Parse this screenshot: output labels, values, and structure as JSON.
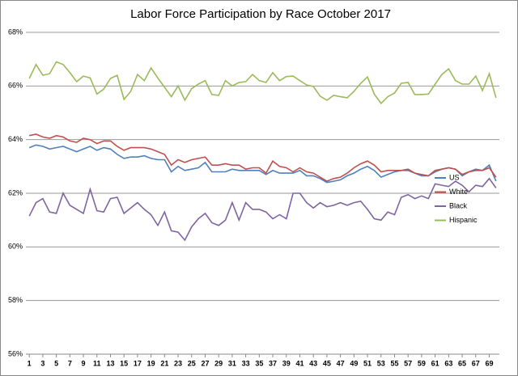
{
  "chart_data": {
    "type": "line",
    "title": "Labor Force Participation by Race October 2017",
    "x": [
      1,
      2,
      3,
      4,
      5,
      6,
      7,
      8,
      9,
      10,
      11,
      12,
      13,
      14,
      15,
      16,
      17,
      18,
      19,
      20,
      21,
      22,
      23,
      24,
      25,
      26,
      27,
      28,
      29,
      30,
      31,
      32,
      33,
      34,
      35,
      36,
      37,
      38,
      39,
      40,
      41,
      42,
      43,
      44,
      45,
      46,
      47,
      48,
      49,
      50,
      51,
      52,
      53,
      54,
      55,
      56,
      57,
      58,
      59,
      60,
      61,
      62,
      63,
      64,
      65,
      66,
      67,
      68,
      69,
      70
    ],
    "xlim": [
      0.5,
      70.5
    ],
    "xticks": [
      1,
      3,
      5,
      7,
      9,
      11,
      13,
      15,
      17,
      19,
      21,
      23,
      25,
      27,
      29,
      31,
      33,
      35,
      37,
      39,
      41,
      43,
      45,
      47,
      49,
      51,
      53,
      55,
      57,
      59,
      61,
      63,
      65,
      67,
      69
    ],
    "ylim": [
      56,
      68
    ],
    "yticks": [
      {
        "value": 56,
        "label": "56%"
      },
      {
        "value": 58,
        "label": "58%"
      },
      {
        "value": 60,
        "label": "60%"
      },
      {
        "value": 62,
        "label": "62%"
      },
      {
        "value": 64,
        "label": "64%"
      },
      {
        "value": 66,
        "label": "66%"
      },
      {
        "value": 68,
        "label": "68%"
      }
    ],
    "grid": true,
    "legend": "right",
    "series": [
      {
        "name": "US",
        "color": "#4f81bd",
        "values": [
          63.7,
          63.8,
          63.75,
          63.65,
          63.7,
          63.75,
          63.65,
          63.55,
          63.65,
          63.75,
          63.6,
          63.7,
          63.65,
          63.45,
          63.3,
          63.35,
          63.35,
          63.4,
          63.3,
          63.25,
          63.25,
          62.8,
          63.0,
          62.85,
          62.9,
          62.95,
          63.15,
          62.8,
          62.8,
          62.8,
          62.9,
          62.85,
          62.85,
          62.85,
          62.85,
          62.7,
          62.85,
          62.75,
          62.75,
          62.75,
          62.85,
          62.65,
          62.65,
          62.55,
          62.4,
          62.45,
          62.5,
          62.65,
          62.75,
          62.9,
          63.0,
          62.85,
          62.6,
          62.7,
          62.8,
          62.85,
          62.85,
          62.75,
          62.65,
          62.65,
          62.8,
          62.9,
          62.95,
          62.9,
          62.65,
          62.8,
          62.9,
          62.85,
          63.05,
          62.45
        ]
      },
      {
        "name": "White",
        "color": "#c0504d",
        "values": [
          64.15,
          64.2,
          64.1,
          64.05,
          64.15,
          64.1,
          63.95,
          63.9,
          64.05,
          64.0,
          63.85,
          63.95,
          63.95,
          63.75,
          63.6,
          63.7,
          63.7,
          63.7,
          63.65,
          63.55,
          63.45,
          63.05,
          63.25,
          63.15,
          63.25,
          63.3,
          63.35,
          63.05,
          63.05,
          63.1,
          63.05,
          63.05,
          62.9,
          62.95,
          62.95,
          62.75,
          63.2,
          63.0,
          62.95,
          62.8,
          62.95,
          62.8,
          62.75,
          62.6,
          62.45,
          62.55,
          62.6,
          62.75,
          62.95,
          63.1,
          63.2,
          63.05,
          62.8,
          62.85,
          62.85,
          62.85,
          62.9,
          62.75,
          62.7,
          62.65,
          62.85,
          62.9,
          62.95,
          62.9,
          62.7,
          62.8,
          62.85,
          62.85,
          62.95,
          62.6
        ]
      },
      {
        "name": "Black",
        "color": "#8064a2",
        "values": [
          61.15,
          61.65,
          61.8,
          61.3,
          61.25,
          62.0,
          61.55,
          61.4,
          61.25,
          62.15,
          61.35,
          61.3,
          61.8,
          61.85,
          61.25,
          61.45,
          61.65,
          61.4,
          61.2,
          60.8,
          61.3,
          60.6,
          60.55,
          60.25,
          60.75,
          61.05,
          61.25,
          60.9,
          60.8,
          61.0,
          61.65,
          61.0,
          61.65,
          61.4,
          61.4,
          61.3,
          61.05,
          61.2,
          61.05,
          62.0,
          62.0,
          61.65,
          61.45,
          61.65,
          61.5,
          61.55,
          61.65,
          61.55,
          61.65,
          61.7,
          61.4,
          61.05,
          61.0,
          61.3,
          61.2,
          61.85,
          61.95,
          61.8,
          61.9,
          61.8,
          62.35,
          62.3,
          62.25,
          62.45,
          62.3,
          62.05,
          62.3,
          62.25,
          62.55,
          62.2
        ]
      },
      {
        "name": "Hispanic",
        "color": "#9bbb59",
        "values": [
          66.28,
          66.8,
          66.4,
          66.46,
          66.9,
          66.8,
          66.5,
          66.16,
          66.37,
          66.3,
          65.7,
          65.88,
          66.28,
          66.4,
          65.5,
          65.8,
          66.43,
          66.2,
          66.67,
          66.3,
          65.95,
          65.6,
          66.0,
          65.47,
          65.9,
          66.07,
          66.2,
          65.68,
          65.65,
          66.2,
          66.0,
          66.13,
          66.16,
          66.43,
          66.2,
          66.13,
          66.5,
          66.2,
          66.35,
          66.37,
          66.2,
          66.04,
          65.98,
          65.62,
          65.47,
          65.65,
          65.6,
          65.56,
          65.8,
          66.1,
          66.34,
          65.7,
          65.35,
          65.6,
          65.74,
          66.1,
          66.13,
          65.68,
          65.68,
          65.7,
          66.07,
          66.43,
          66.64,
          66.2,
          66.07,
          66.07,
          66.37,
          65.83,
          66.46,
          65.56
        ]
      }
    ]
  }
}
